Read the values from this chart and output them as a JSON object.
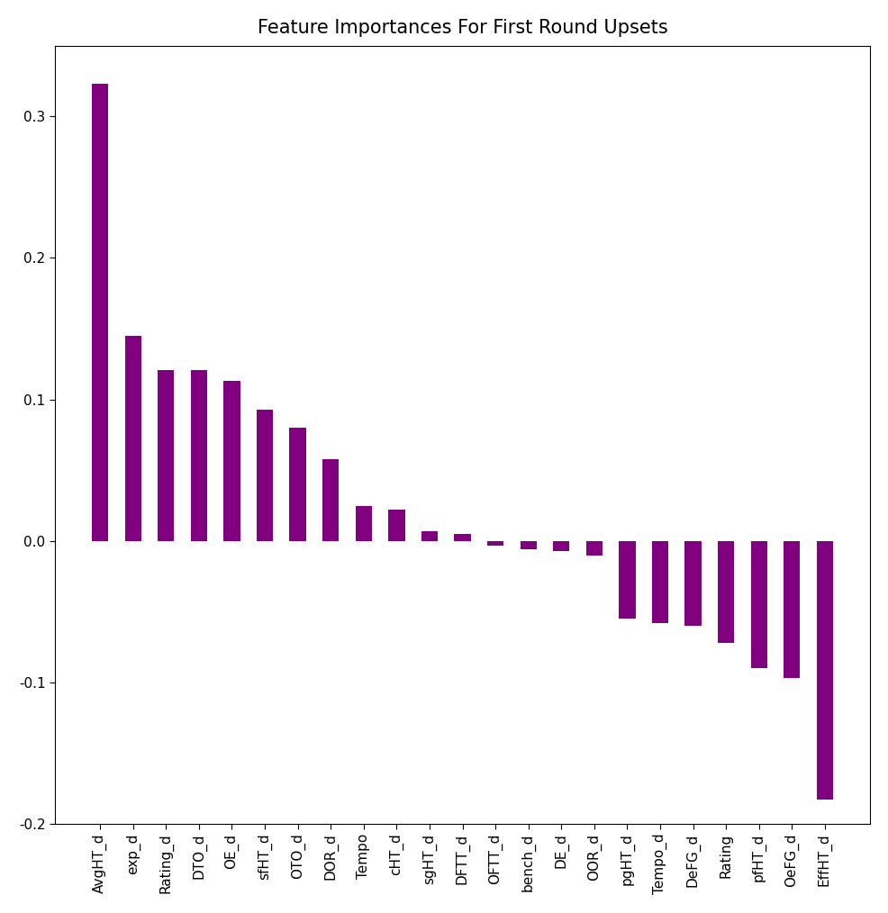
{
  "categories": [
    "AvgHT_d",
    "exp_d",
    "Rating_d",
    "DTO_d",
    "OE_d",
    "sfHT_d",
    "OTO_d",
    "DOR_d",
    "Tempo",
    "cHT_d",
    "sgHT_d",
    "DFTT_d",
    "OFTT_d",
    "bench_d",
    "DE_d",
    "OOR_d",
    "pgHT_d",
    "Tempo_d",
    "DeFG_d",
    "Rating",
    "pfHT_d",
    "OeFG_d",
    "EffHT_d"
  ],
  "values": [
    0.323,
    0.145,
    0.121,
    0.121,
    0.113,
    0.093,
    0.08,
    0.058,
    0.025,
    0.022,
    0.007,
    0.005,
    -0.003,
    -0.006,
    -0.007,
    -0.01,
    -0.055,
    -0.058,
    -0.06,
    -0.072,
    -0.09,
    -0.097,
    -0.183
  ],
  "bar_color": "#800080",
  "title": "Feature Importances For First Round Upsets",
  "ylim": [
    -0.2,
    0.35
  ],
  "yticks": [
    -0.2,
    -0.1,
    0.0,
    0.1,
    0.2,
    0.3
  ],
  "title_fontsize": 15,
  "tick_fontsize": 11,
  "background_color": "#ffffff",
  "bar_width": 0.5
}
